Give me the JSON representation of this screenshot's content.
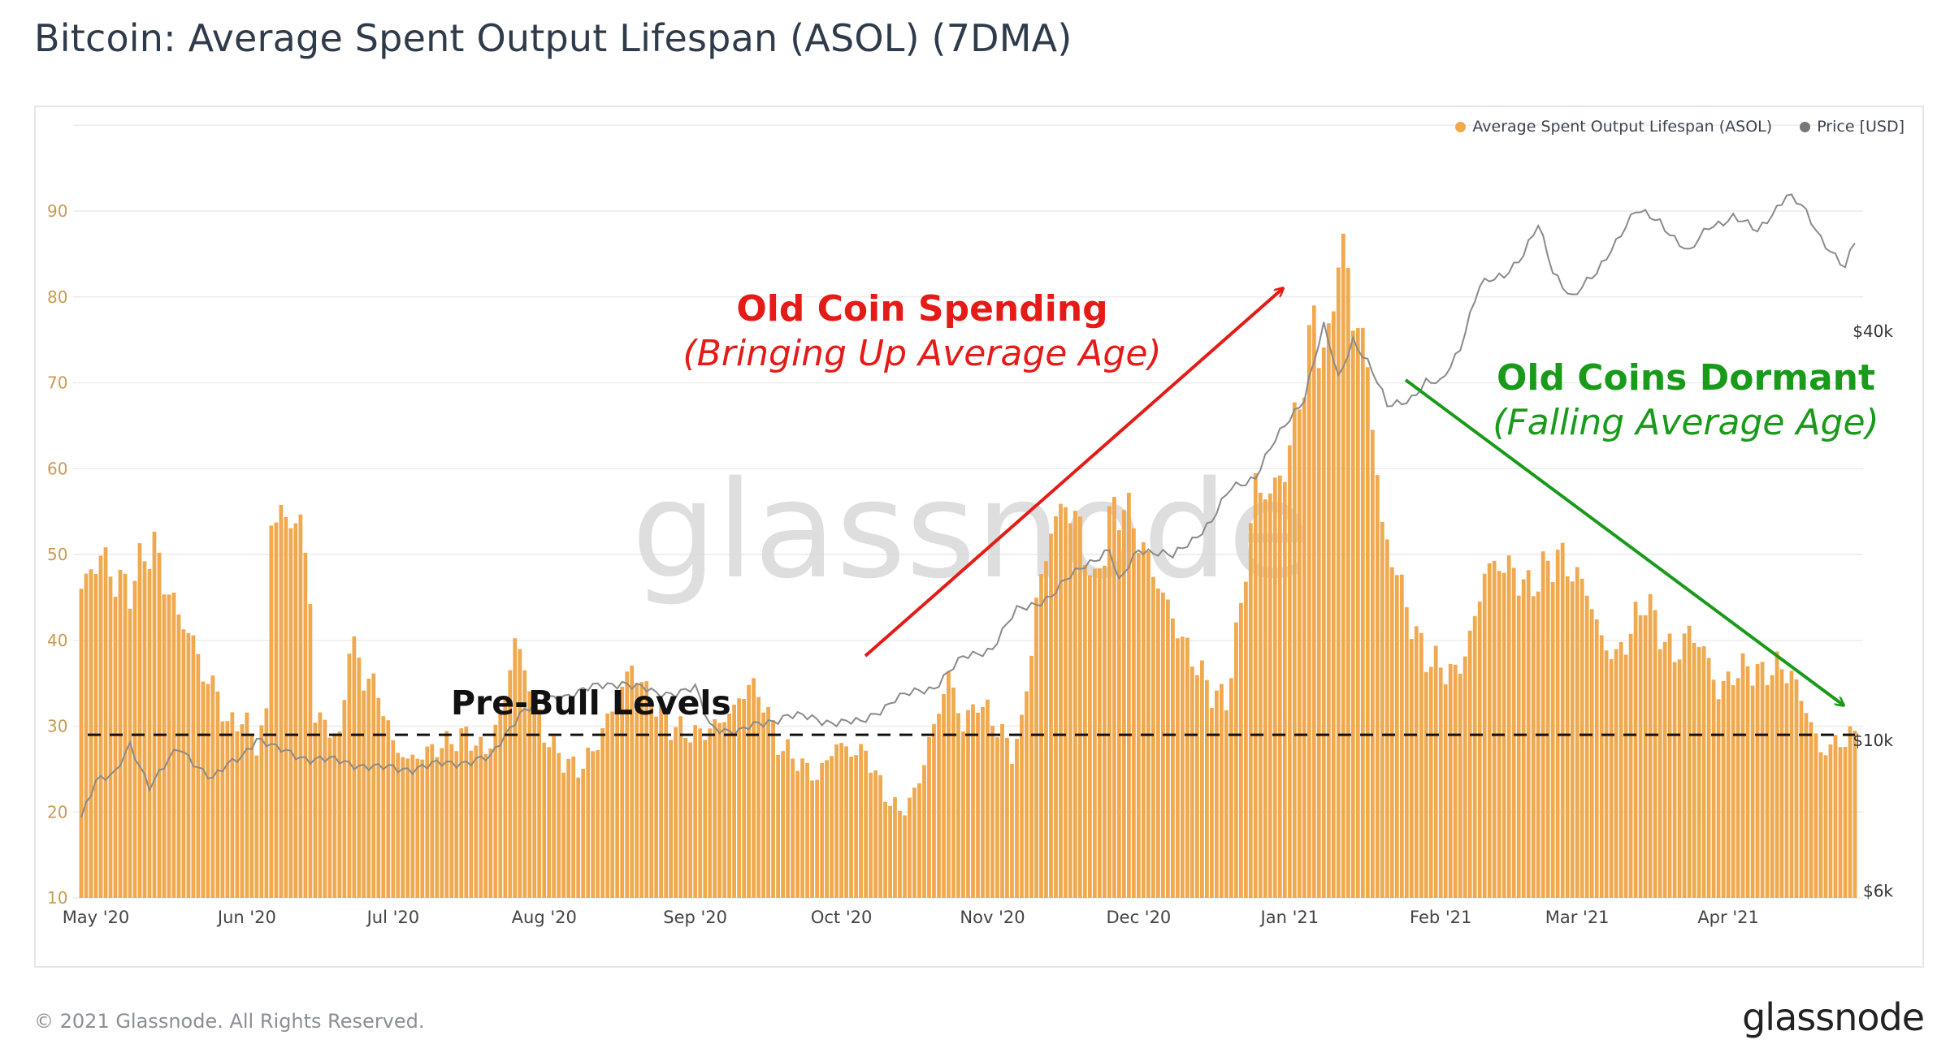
{
  "title": "Bitcoin: Average Spent Output Lifespan (ASOL) (7DMA)",
  "footer": {
    "copyright": "© 2021 Glassnode. All Rights Reserved.",
    "logo": "glassnode"
  },
  "watermark": "glassnode",
  "colors": {
    "bar": "#f0a94e",
    "price": "#8f8f8f",
    "red": "#e41b17",
    "green": "#1a9a1a",
    "axis_left": "#c99a54",
    "axis_right": "#333333"
  },
  "legend": [
    {
      "label": "Average Spent Output Lifespan (ASOL)",
      "color": "#f0a94e"
    },
    {
      "label": "Price [USD]",
      "color": "#777777"
    }
  ],
  "annotations": {
    "old_spending_title": "Old Coin Spending",
    "old_spending_sub": "(Bringing Up Average Age)",
    "dormant_title": "Old Coins Dormant",
    "dormant_sub": "(Falling Average Age)",
    "prebull": "Pre-Bull Levels"
  },
  "chart_data": {
    "type": "bar",
    "title": "Bitcoin: Average Spent Output Lifespan (ASOL) (7DMA)",
    "x_start": "2020-04-28",
    "x_end": "2021-04-27",
    "x_ticks": [
      "May '20",
      "Jun '20",
      "Jul '20",
      "Aug '20",
      "Sep '20",
      "Oct '20",
      "Nov '20",
      "Dec '20",
      "Jan '21",
      "Feb '21",
      "Mar '21",
      "Apr '21"
    ],
    "y_left": {
      "ticks": [
        10,
        20,
        30,
        40,
        50,
        60,
        70,
        80,
        90
      ],
      "range": [
        10,
        100
      ]
    },
    "y_right": {
      "ticks": [
        "$6k",
        "$10k",
        "$40k"
      ],
      "scale": "log"
    },
    "pre_bull_level": 29,
    "series": [
      {
        "name": "Average Spent Output Lifespan (ASOL)",
        "type": "bar",
        "keypoints": [
          [
            "2020-04-28",
            46
          ],
          [
            "2020-05-02",
            50
          ],
          [
            "2020-05-05",
            47
          ],
          [
            "2020-05-08",
            46
          ],
          [
            "2020-05-11",
            50
          ],
          [
            "2020-05-13",
            51
          ],
          [
            "2020-05-15",
            47
          ],
          [
            "2020-05-18",
            43
          ],
          [
            "2020-05-21",
            40
          ],
          [
            "2020-05-23",
            36
          ],
          [
            "2020-05-26",
            34
          ],
          [
            "2020-05-28",
            30
          ],
          [
            "2020-05-31",
            31
          ],
          [
            "2020-06-03",
            28
          ],
          [
            "2020-06-05",
            31
          ],
          [
            "2020-06-06",
            55
          ],
          [
            "2020-06-09",
            54
          ],
          [
            "2020-06-12",
            54
          ],
          [
            "2020-06-14",
            45
          ],
          [
            "2020-06-15",
            31
          ],
          [
            "2020-06-18",
            30
          ],
          [
            "2020-06-20",
            28
          ],
          [
            "2020-06-22",
            40
          ],
          [
            "2020-06-25",
            36
          ],
          [
            "2020-06-28",
            34
          ],
          [
            "2020-07-01",
            28
          ],
          [
            "2020-07-04",
            26
          ],
          [
            "2020-07-08",
            27
          ],
          [
            "2020-07-12",
            28
          ],
          [
            "2020-07-16",
            29
          ],
          [
            "2020-07-20",
            27
          ],
          [
            "2020-07-23",
            31
          ],
          [
            "2020-07-26",
            40
          ],
          [
            "2020-07-29",
            35
          ],
          [
            "2020-08-01",
            29
          ],
          [
            "2020-08-05",
            26
          ],
          [
            "2020-08-08",
            25
          ],
          [
            "2020-08-11",
            27
          ],
          [
            "2020-08-15",
            32
          ],
          [
            "2020-08-19",
            37
          ],
          [
            "2020-08-23",
            33
          ],
          [
            "2020-08-27",
            30
          ],
          [
            "2020-09-01",
            29
          ],
          [
            "2020-09-05",
            30
          ],
          [
            "2020-09-09",
            32
          ],
          [
            "2020-09-12",
            35
          ],
          [
            "2020-09-15",
            33
          ],
          [
            "2020-09-18",
            28
          ],
          [
            "2020-09-22",
            26
          ],
          [
            "2020-09-26",
            24
          ],
          [
            "2020-09-30",
            28
          ],
          [
            "2020-10-03",
            27
          ],
          [
            "2020-10-06",
            27
          ],
          [
            "2020-10-10",
            22
          ],
          [
            "2020-10-13",
            20
          ],
          [
            "2020-10-16",
            22
          ],
          [
            "2020-10-20",
            30
          ],
          [
            "2020-10-23",
            36
          ],
          [
            "2020-10-26",
            30
          ],
          [
            "2020-10-29",
            33
          ],
          [
            "2020-11-02",
            30
          ],
          [
            "2020-11-05",
            27
          ],
          [
            "2020-11-07",
            30
          ],
          [
            "2020-11-10",
            44
          ],
          [
            "2020-11-13",
            53
          ],
          [
            "2020-11-16",
            56
          ],
          [
            "2020-11-19",
            53
          ],
          [
            "2020-11-22",
            46
          ],
          [
            "2020-11-25",
            54
          ],
          [
            "2020-11-28",
            56
          ],
          [
            "2020-12-01",
            52
          ],
          [
            "2020-12-04",
            48
          ],
          [
            "2020-12-07",
            44
          ],
          [
            "2020-12-10",
            40
          ],
          [
            "2020-12-13",
            37
          ],
          [
            "2020-12-16",
            34
          ],
          [
            "2020-12-19",
            33
          ],
          [
            "2020-12-22",
            44
          ],
          [
            "2020-12-25",
            58
          ],
          [
            "2020-12-28",
            57
          ],
          [
            "2020-12-31",
            60
          ],
          [
            "2021-01-03",
            68
          ],
          [
            "2021-01-06",
            77
          ],
          [
            "2021-01-09",
            73
          ],
          [
            "2021-01-11",
            87
          ],
          [
            "2021-01-14",
            79
          ],
          [
            "2021-01-17",
            72
          ],
          [
            "2021-01-20",
            53
          ],
          [
            "2021-01-23",
            48
          ],
          [
            "2021-01-26",
            42
          ],
          [
            "2021-01-29",
            38
          ],
          [
            "2021-02-01",
            37
          ],
          [
            "2021-02-04",
            36
          ],
          [
            "2021-02-07",
            40
          ],
          [
            "2021-02-10",
            48
          ],
          [
            "2021-02-13",
            49
          ],
          [
            "2021-02-16",
            48
          ],
          [
            "2021-02-19",
            46
          ],
          [
            "2021-02-22",
            48
          ],
          [
            "2021-02-25",
            50
          ],
          [
            "2021-02-28",
            48
          ],
          [
            "2021-03-03",
            46
          ],
          [
            "2021-03-06",
            40
          ],
          [
            "2021-03-09",
            38
          ],
          [
            "2021-03-12",
            41
          ],
          [
            "2021-03-15",
            45
          ],
          [
            "2021-03-18",
            41
          ],
          [
            "2021-03-21",
            38
          ],
          [
            "2021-03-24",
            41
          ],
          [
            "2021-03-27",
            39
          ],
          [
            "2021-03-30",
            34
          ],
          [
            "2021-04-02",
            36
          ],
          [
            "2021-04-05",
            37
          ],
          [
            "2021-04-08",
            36
          ],
          [
            "2021-04-11",
            37
          ],
          [
            "2021-04-14",
            36
          ],
          [
            "2021-04-17",
            32
          ],
          [
            "2021-04-20",
            27
          ],
          [
            "2021-04-23",
            28
          ],
          [
            "2021-04-27",
            29
          ]
        ]
      },
      {
        "name": "Price [USD]",
        "type": "line",
        "keypoints": [
          [
            "2020-04-28",
            7700
          ],
          [
            "2020-05-01",
            8800
          ],
          [
            "2020-05-05",
            8900
          ],
          [
            "2020-05-08",
            9800
          ],
          [
            "2020-05-12",
            8600
          ],
          [
            "2020-05-18",
            9700
          ],
          [
            "2020-05-25",
            8800
          ],
          [
            "2020-05-31",
            9500
          ],
          [
            "2020-06-03",
            10100
          ],
          [
            "2020-06-07",
            9700
          ],
          [
            "2020-06-14",
            9400
          ],
          [
            "2020-06-21",
            9300
          ],
          [
            "2020-06-28",
            9100
          ],
          [
            "2020-07-05",
            9100
          ],
          [
            "2020-07-12",
            9250
          ],
          [
            "2020-07-21",
            9400
          ],
          [
            "2020-07-27",
            11000
          ],
          [
            "2020-08-02",
            11500
          ],
          [
            "2020-08-10",
            11900
          ],
          [
            "2020-08-17",
            12200
          ],
          [
            "2020-08-24",
            11700
          ],
          [
            "2020-09-01",
            11900
          ],
          [
            "2020-09-04",
            10500
          ],
          [
            "2020-09-10",
            10300
          ],
          [
            "2020-09-20",
            10900
          ],
          [
            "2020-09-27",
            10700
          ],
          [
            "2020-10-05",
            10600
          ],
          [
            "2020-10-12",
            11500
          ],
          [
            "2020-10-20",
            12000
          ],
          [
            "2020-10-26",
            13200
          ],
          [
            "2020-11-01",
            13700
          ],
          [
            "2020-11-06",
            15500
          ],
          [
            "2020-11-13",
            16300
          ],
          [
            "2020-11-20",
            18200
          ],
          [
            "2020-11-25",
            19000
          ],
          [
            "2020-11-27",
            17000
          ],
          [
            "2020-12-01",
            19200
          ],
          [
            "2020-12-08",
            18600
          ],
          [
            "2020-12-16",
            21000
          ],
          [
            "2020-12-20",
            23500
          ],
          [
            "2020-12-25",
            24500
          ],
          [
            "2020-12-31",
            29000
          ],
          [
            "2021-01-04",
            32000
          ],
          [
            "2021-01-08",
            40500
          ],
          [
            "2021-01-11",
            34000
          ],
          [
            "2021-01-14",
            39000
          ],
          [
            "2021-01-17",
            36000
          ],
          [
            "2021-01-21",
            31000
          ],
          [
            "2021-01-26",
            32000
          ],
          [
            "2021-01-29",
            33500
          ],
          [
            "2021-02-01",
            33500
          ],
          [
            "2021-02-05",
            38000
          ],
          [
            "2021-02-09",
            46500
          ],
          [
            "2021-02-14",
            48500
          ],
          [
            "2021-02-18",
            52000
          ],
          [
            "2021-02-21",
            57000
          ],
          [
            "2021-02-24",
            49000
          ],
          [
            "2021-02-28",
            45000
          ],
          [
            "2021-03-05",
            48500
          ],
          [
            "2021-03-10",
            56000
          ],
          [
            "2021-03-13",
            60000
          ],
          [
            "2021-03-18",
            58000
          ],
          [
            "2021-03-24",
            52000
          ],
          [
            "2021-03-28",
            57000
          ],
          [
            "2021-04-02",
            59000
          ],
          [
            "2021-04-07",
            56000
          ],
          [
            "2021-04-13",
            63500
          ],
          [
            "2021-04-16",
            61000
          ],
          [
            "2021-04-20",
            55000
          ],
          [
            "2021-04-25",
            49500
          ],
          [
            "2021-04-27",
            54000
          ]
        ]
      }
    ]
  }
}
